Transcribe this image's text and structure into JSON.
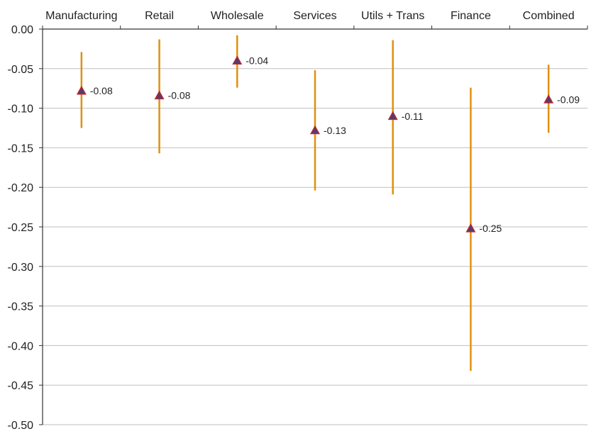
{
  "chart_data": {
    "type": "scatter",
    "title": "",
    "xlabel": "",
    "ylabel": "",
    "categories": [
      "Manufacturing",
      "Retail",
      "Wholesale",
      "Services",
      "Utils + Trans",
      "Finance",
      "Combined"
    ],
    "values": [
      -0.078,
      -0.084,
      -0.04,
      -0.128,
      -0.11,
      -0.252,
      -0.089
    ],
    "lower": [
      -0.125,
      -0.157,
      -0.074,
      -0.204,
      -0.209,
      -0.432,
      -0.131
    ],
    "upper": [
      -0.029,
      -0.013,
      -0.008,
      -0.052,
      -0.014,
      -0.074,
      -0.045
    ],
    "data_labels": [
      "-0.08",
      "-0.08",
      "-0.04",
      "-0.13",
      "-0.11",
      "-0.25",
      "-0.09"
    ],
    "yticks": [
      "0.00",
      "-0.05",
      "-0.10",
      "-0.15",
      "-0.20",
      "-0.25",
      "-0.30",
      "-0.35",
      "-0.40",
      "-0.45",
      "-0.50"
    ],
    "ylim": [
      -0.5,
      0
    ],
    "grid": true,
    "x_axis_position": "top",
    "colors": {
      "error_bar": "#E0900F",
      "marker_fill": "#5A3A6E",
      "marker_stroke": "#C0282D",
      "grid": "#bfbfbf",
      "axis": "#333333"
    }
  }
}
